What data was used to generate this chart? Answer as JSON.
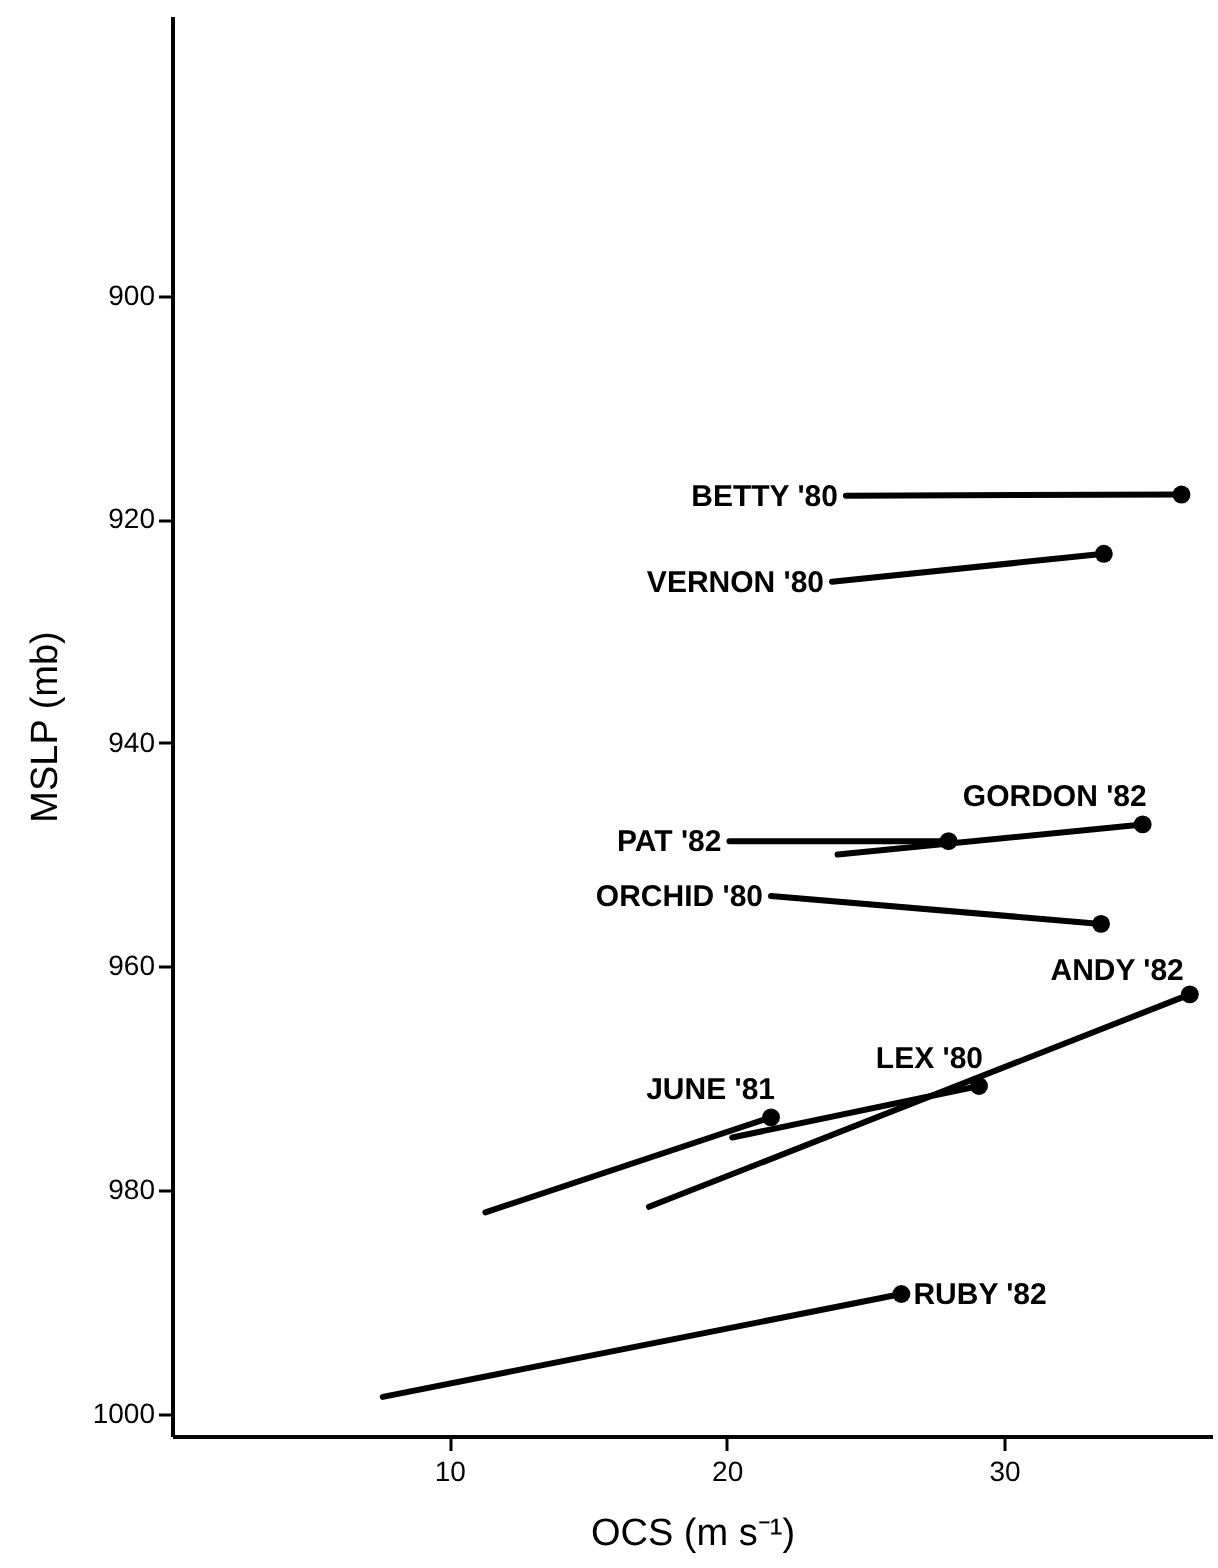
{
  "chart_data": {
    "type": "line",
    "xlabel": "OCS (m s⁻¹)",
    "ylabel": "MSLP (mb)",
    "xlim": [
      0,
      37.5
    ],
    "ylim": [
      1002,
      875
    ],
    "xticks": [
      10,
      20,
      30
    ],
    "yticks": [
      900,
      920,
      940,
      960,
      980,
      1000
    ],
    "grid": false,
    "legend": false,
    "marker": "none",
    "line_style": "solid",
    "series": [
      {
        "name": "BETTY '80",
        "color": "#000000",
        "x": [
          24.3,
          36.4
        ],
        "values": [
          917.9,
          917.8
        ]
      },
      {
        "name": "VERNON '80",
        "color": "#000000",
        "x": [
          23.8,
          33.6
        ],
        "values": [
          925.6,
          923.1
        ]
      },
      {
        "name": "GORDON '82",
        "color": "#000000",
        "x": [
          24.0,
          35.0
        ],
        "values": [
          950.0,
          947.3
        ]
      },
      {
        "name": "PAT '82",
        "color": "#000000",
        "x": [
          20.1,
          28.0
        ],
        "values": [
          948.8,
          948.8
        ]
      },
      {
        "name": "ORCHID '80",
        "color": "#000000",
        "x": [
          21.6,
          33.5
        ],
        "values": [
          953.7,
          956.2
        ]
      },
      {
        "name": "ANDY '82",
        "color": "#000000",
        "x": [
          17.2,
          36.7
        ],
        "values": [
          981.5,
          962.5
        ]
      },
      {
        "name": "LEX '80",
        "color": "#000000",
        "x": [
          20.2,
          29.1
        ],
        "values": [
          975.3,
          970.7
        ]
      },
      {
        "name": "JUNE '81",
        "color": "#000000",
        "x": [
          11.3,
          21.6
        ],
        "values": [
          982.0,
          973.5
        ]
      },
      {
        "name": "RUBY '82",
        "color": "#000000",
        "x": [
          7.6,
          26.3
        ],
        "values": [
          998.5,
          989.3
        ]
      },
      {
        "type": "scatter",
        "color": "#000000",
        "marker": "circle",
        "x": [
          36.4,
          33.6,
          35.0,
          28.0,
          33.5,
          36.7,
          29.1,
          21.6,
          26.3
        ],
        "values": [
          917.8,
          923.1,
          947.3,
          948.8,
          956.2,
          962.5,
          970.7,
          973.5,
          989.3
        ]
      }
    ]
  }
}
